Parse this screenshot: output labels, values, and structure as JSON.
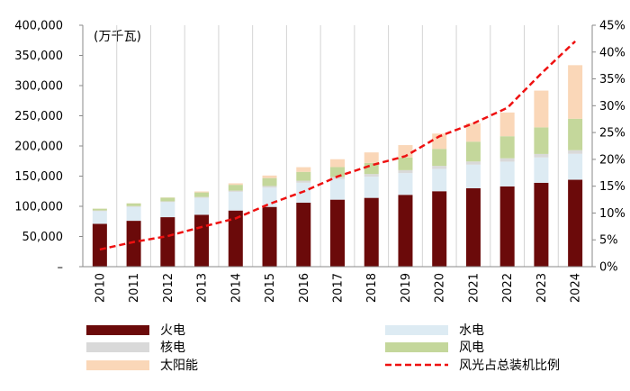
{
  "chart_data": {
    "type": "bar",
    "stacked": true,
    "unit_label": "(万千瓦)",
    "categories": [
      "2010",
      "2011",
      "2012",
      "2013",
      "2014",
      "2015",
      "2016",
      "2017",
      "2018",
      "2019",
      "2020",
      "2021",
      "2022",
      "2023",
      "2024"
    ],
    "series": [
      {
        "name": "火电",
        "color": "#6b0a0a",
        "values": [
          71000,
          76000,
          82000,
          86000,
          93000,
          99000,
          106000,
          111000,
          114000,
          119000,
          125000,
          130000,
          133000,
          139000,
          144000
        ]
      },
      {
        "name": "水电",
        "color": "#ddebf3",
        "values": [
          21000,
          23000,
          25000,
          28000,
          31000,
          32000,
          33000,
          34000,
          35000,
          36000,
          37000,
          39000,
          41000,
          42000,
          43000
        ]
      },
      {
        "name": "核电",
        "color": "#d9d9d9",
        "values": [
          1100,
          1300,
          1300,
          1500,
          2000,
          2700,
          3400,
          3600,
          4500,
          4900,
          5000,
          5300,
          5600,
          5700,
          6000
        ]
      },
      {
        "name": "风电",
        "color": "#c4d79b",
        "values": [
          3000,
          4600,
          6100,
          7500,
          9600,
          13100,
          14700,
          16400,
          18400,
          21000,
          28200,
          32800,
          36500,
          44100,
          52100
        ]
      },
      {
        "name": "太阳能",
        "color": "#fad7b8",
        "values": [
          100,
          200,
          300,
          1600,
          2500,
          4200,
          7700,
          13000,
          17400,
          20500,
          25300,
          30700,
          39300,
          60900,
          88700
        ]
      }
    ],
    "line_series": {
      "name": "风光占总装机比例",
      "color": "#ee1111",
      "style": "dashed",
      "values": [
        3.2,
        4.6,
        5.7,
        7.4,
        9.0,
        11.7,
        14.0,
        16.8,
        18.9,
        20.6,
        24.3,
        26.7,
        29.6,
        36.0,
        42.0
      ]
    },
    "y_left": {
      "min": 0,
      "max": 400000,
      "ticks": [
        "–",
        "50,000",
        "100,000",
        "150,000",
        "200,000",
        "250,000",
        "300,000",
        "350,000",
        "400,000"
      ]
    },
    "y_right": {
      "min": 0,
      "max": 45,
      "ticks": [
        "0%",
        "5%",
        "10%",
        "15%",
        "20%",
        "25%",
        "30%",
        "35%",
        "40%",
        "45%"
      ]
    },
    "grid": "vertical",
    "legend": {
      "position": "bottom",
      "columns": 2,
      "items": [
        {
          "label": "火电",
          "color": "#6b0a0a",
          "kind": "bar"
        },
        {
          "label": "水电",
          "color": "#ddebf3",
          "kind": "bar"
        },
        {
          "label": "核电",
          "color": "#d9d9d9",
          "kind": "bar"
        },
        {
          "label": "风电",
          "color": "#c4d79b",
          "kind": "bar"
        },
        {
          "label": "太阳能",
          "color": "#fad7b8",
          "kind": "bar"
        },
        {
          "label": "风光占总装机比例",
          "color": "#ee1111",
          "kind": "line"
        }
      ]
    }
  }
}
